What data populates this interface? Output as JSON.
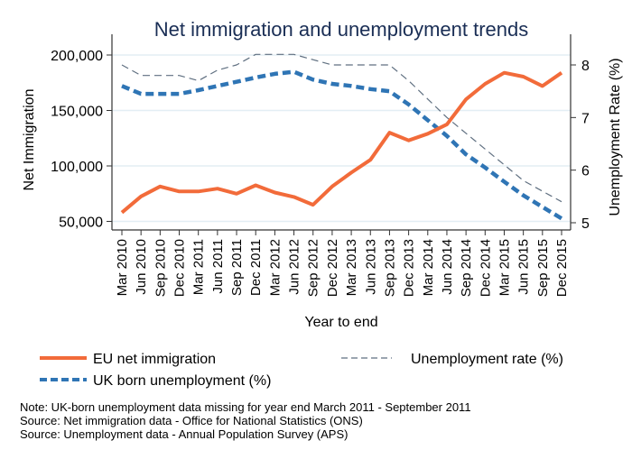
{
  "chart_data": {
    "type": "line",
    "title": "Net immigration and unemployment trends",
    "xlabel": "Year to end",
    "ylabel": "Net Immigration",
    "y2label": "Unemployment Rate (%)",
    "ylim": [
      50000,
      200000
    ],
    "y2lim": [
      5,
      8
    ],
    "yticks": [
      50000,
      100000,
      150000,
      200000
    ],
    "ytick_labels": [
      "50,000",
      "100,000",
      "150,000",
      "200,000"
    ],
    "y2ticks": [
      5,
      6,
      7,
      8
    ],
    "y2tick_labels": [
      "5",
      "6",
      "7",
      "8"
    ],
    "grid": true,
    "legend_position": "bottom",
    "categories": [
      "Mar 2010",
      "Jun 2010",
      "Sep 2010",
      "Dec 2010",
      "Mar 2011",
      "Jun 2011",
      "Sep 2011",
      "Dec 2011",
      "Mar 2012",
      "Jun 2012",
      "Sep 2012",
      "Dec 2012",
      "Mar 2013",
      "Jun 2013",
      "Sep 2013",
      "Dec 2013",
      "Mar 2014",
      "Jun 2014",
      "Sep 2014",
      "Dec 2014",
      "Mar 2015",
      "Jun 2015",
      "Sep 2015",
      "Dec 2015"
    ],
    "series": [
      {
        "name": "EU net immigration",
        "axis": "left",
        "color": "#f26b3a",
        "style": "solid",
        "values": [
          58000,
          72500,
          81500,
          77000,
          77000,
          79500,
          75000,
          82500,
          76000,
          72000,
          65000,
          81500,
          94000,
          105500,
          130000,
          123000,
          129000,
          137500,
          160000,
          174000,
          184000,
          180500,
          172000,
          184000
        ]
      },
      {
        "name": "UK born unemployment (%)",
        "axis": "right",
        "color": "#2f75b5",
        "style": "dashed-thick",
        "values": [
          7.6,
          7.45,
          7.45,
          7.45,
          7.52,
          7.6,
          7.68,
          7.76,
          7.83,
          7.87,
          7.72,
          7.64,
          7.6,
          7.54,
          7.5,
          7.25,
          6.95,
          6.65,
          6.3,
          6.05,
          5.78,
          5.52,
          5.3,
          5.08
        ]
      },
      {
        "name": "Unemployment rate (%)",
        "axis": "right",
        "color": "#5f6f80",
        "style": "dashed-thin",
        "values": [
          8.0,
          7.8,
          7.8,
          7.8,
          7.7,
          7.9,
          8.0,
          8.2,
          8.2,
          8.2,
          8.1,
          8.0,
          8.0,
          8.0,
          8.0,
          7.7,
          7.35,
          7.0,
          6.7,
          6.4,
          6.1,
          5.8,
          5.6,
          5.4
        ]
      }
    ],
    "notes": [
      "Note: UK-born unemployment data missing for year end March 2011 - September 2011",
      "Source: Net immigration data - Office for National Statistics (ONS)",
      "Source: Unemployment data - Annual Population Survey (APS)"
    ]
  }
}
